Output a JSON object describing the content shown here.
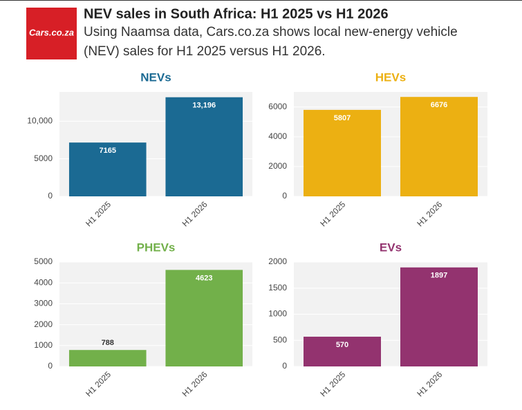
{
  "header": {
    "logo": "Cars.co.za",
    "title": "NEV sales in South Africa: H1 2025 vs H1 2026",
    "subtitle_lines": [
      "Using Naamsa data, Cars.co.za shows local new-energy vehicle",
      "(NEV) sales for H1 2025 versus H1 2026."
    ]
  },
  "chart_data": [
    {
      "type": "bar",
      "title": "NEVs",
      "categories": [
        "H1 2025",
        "H1 2026"
      ],
      "values": [
        7165,
        13196
      ],
      "value_labels": [
        "7165",
        "13,196"
      ],
      "color": "#1b6a93",
      "ylim": [
        0,
        13900
      ],
      "yticks": [
        0,
        5000,
        {
          "value": 10000,
          "label": "10,000"
        }
      ],
      "grid": true
    },
    {
      "type": "bar",
      "title": "HEVs",
      "categories": [
        "H1 2025",
        "H1 2026"
      ],
      "values": [
        5807,
        6676
      ],
      "color": "#ecb012",
      "ylim": [
        0,
        7010
      ],
      "yticks": [
        0,
        2000,
        4000,
        6000
      ],
      "grid": true
    },
    {
      "type": "bar",
      "title": "PHEVs",
      "categories": [
        "H1 2025",
        "H1 2026"
      ],
      "values": [
        788,
        4623
      ],
      "color": "#72b04a",
      "ylim": [
        0,
        5000
      ],
      "yticks": [
        0,
        1000,
        2000,
        3000,
        4000,
        5000
      ],
      "grid": true
    },
    {
      "type": "bar",
      "title": "EVs",
      "categories": [
        "H1 2025",
        "H1 2026"
      ],
      "values": [
        570,
        1897
      ],
      "color": "#93336f",
      "ylim": [
        0,
        2000
      ],
      "yticks": [
        0,
        500,
        1000,
        1500,
        2000
      ],
      "grid": true
    }
  ]
}
